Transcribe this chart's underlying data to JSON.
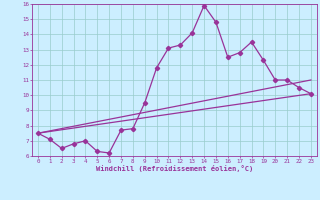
{
  "title": "",
  "xlabel": "Windchill (Refroidissement éolien,°C)",
  "ylabel": "",
  "bg_color": "#cceeff",
  "line_color": "#993399",
  "grid_color": "#99cccc",
  "xlim": [
    -0.5,
    23.5
  ],
  "ylim": [
    6,
    16
  ],
  "xticks": [
    0,
    1,
    2,
    3,
    4,
    5,
    6,
    7,
    8,
    9,
    10,
    11,
    12,
    13,
    14,
    15,
    16,
    17,
    18,
    19,
    20,
    21,
    22,
    23
  ],
  "yticks": [
    6,
    7,
    8,
    9,
    10,
    11,
    12,
    13,
    14,
    15,
    16
  ],
  "line1_x": [
    0,
    1,
    2,
    3,
    4,
    5,
    6,
    7,
    8,
    9,
    10,
    11,
    12,
    13,
    14,
    15,
    16,
    17,
    18,
    19,
    20,
    21,
    22,
    23
  ],
  "line1_y": [
    7.5,
    7.1,
    6.5,
    6.8,
    7.0,
    6.3,
    6.2,
    7.7,
    7.8,
    9.5,
    11.8,
    13.1,
    13.3,
    14.1,
    15.9,
    14.8,
    12.5,
    12.8,
    13.5,
    12.3,
    11.0,
    11.0,
    10.5,
    10.1
  ],
  "line2_x": [
    0,
    23
  ],
  "line2_y": [
    7.5,
    10.1
  ],
  "line3_x": [
    0,
    23
  ],
  "line3_y": [
    7.5,
    11.0
  ],
  "marker": "D",
  "markersize": 2.2,
  "linewidth": 0.9
}
